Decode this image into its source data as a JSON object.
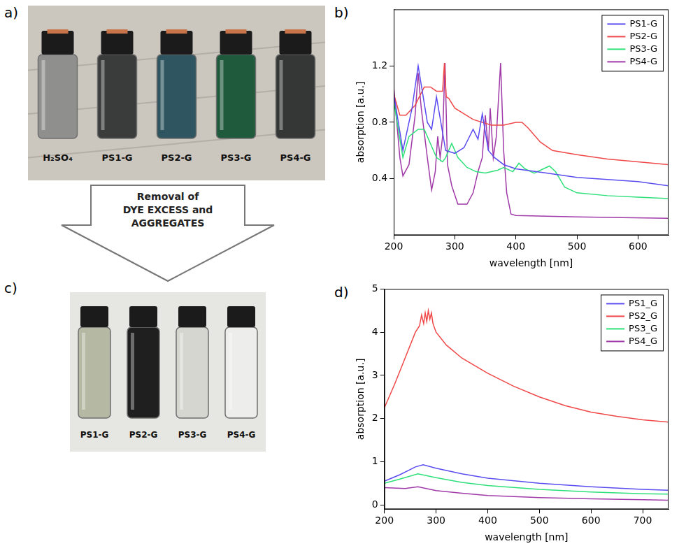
{
  "photos": [
    {
      "panel_label": "a)",
      "vials": [
        {
          "label": "H₂SO₄",
          "color": "#8f908e"
        },
        {
          "label": "PS1-G",
          "color": "#3a3c3b"
        },
        {
          "label": "PS2-G",
          "color": "#2f5560"
        },
        {
          "label": "PS3-G",
          "color": "#1f5a3c"
        },
        {
          "label": "PS4-G",
          "color": "#353737"
        }
      ]
    },
    {
      "panel_label": "c)",
      "vials": [
        {
          "label": "PS1-G",
          "color": "#b5b8a2"
        },
        {
          "label": "PS2-G",
          "color": "#1e1f1e"
        },
        {
          "label": "PS3-G",
          "color": "#d5d6cf"
        },
        {
          "label": "PS4-G",
          "color": "#ededeb"
        }
      ]
    }
  ],
  "arrow": {
    "text_lines": [
      "Removal of",
      "DYE EXCESS and",
      "AGGREGATES"
    ]
  },
  "chart_data": [
    {
      "type": "line",
      "panel_label": "b)",
      "x_label": "wavelength [nm]",
      "y_label": "absorption [a.u.]",
      "xlim": [
        200,
        650
      ],
      "ylim": [
        0,
        1.6
      ],
      "xticks": [
        200,
        300,
        400,
        500,
        600
      ],
      "yticks": [
        0.4,
        0.8,
        1.2
      ],
      "legend": "top-right",
      "series": [
        {
          "name": "PS1-G",
          "color": "#5a4cf0",
          "x": [
            200,
            215,
            230,
            240,
            255,
            262,
            270,
            285,
            300,
            315,
            330,
            338,
            345,
            355,
            365,
            380,
            400,
            450,
            500,
            600,
            650
          ],
          "values": [
            1.0,
            0.6,
            0.9,
            1.2,
            0.8,
            0.75,
            0.98,
            0.6,
            0.58,
            0.62,
            0.75,
            0.68,
            0.86,
            0.6,
            0.55,
            0.5,
            0.47,
            0.44,
            0.41,
            0.38,
            0.35
          ]
        },
        {
          "name": "PS2-G",
          "color": "#f04848",
          "x": [
            200,
            210,
            220,
            235,
            250,
            260,
            270,
            280,
            283,
            286,
            290,
            300,
            330,
            360,
            380,
            400,
            410,
            420,
            440,
            460,
            500,
            550,
            600,
            650
          ],
          "values": [
            1.0,
            0.85,
            0.85,
            0.92,
            1.05,
            1.05,
            1.02,
            1.02,
            1.22,
            0.98,
            0.97,
            0.9,
            0.82,
            0.78,
            0.78,
            0.8,
            0.8,
            0.76,
            0.66,
            0.6,
            0.57,
            0.54,
            0.52,
            0.5
          ]
        },
        {
          "name": "PS3-G",
          "color": "#2ee07a",
          "x": [
            200,
            215,
            225,
            240,
            250,
            260,
            270,
            280,
            285,
            295,
            305,
            320,
            335,
            350,
            370,
            380,
            395,
            405,
            415,
            430,
            445,
            455,
            465,
            480,
            500,
            550,
            600,
            650
          ],
          "values": [
            0.95,
            0.55,
            0.7,
            0.75,
            0.75,
            0.65,
            0.55,
            0.52,
            0.55,
            0.65,
            0.55,
            0.48,
            0.45,
            0.44,
            0.46,
            0.48,
            0.45,
            0.51,
            0.47,
            0.44,
            0.47,
            0.49,
            0.45,
            0.34,
            0.3,
            0.28,
            0.27,
            0.26
          ]
        },
        {
          "name": "PS4-G",
          "color": "#a03aa8",
          "x": [
            200,
            210,
            215,
            225,
            235,
            240,
            245,
            255,
            262,
            268,
            272,
            276,
            280,
            284,
            288,
            295,
            305,
            320,
            330,
            338,
            345,
            350,
            355,
            358,
            363,
            368,
            375,
            380,
            385,
            392,
            400,
            500,
            650
          ],
          "values": [
            1.05,
            0.55,
            0.42,
            0.5,
            0.85,
            1.15,
            0.9,
            0.55,
            0.32,
            0.45,
            0.7,
            0.55,
            0.7,
            1.22,
            0.5,
            0.35,
            0.22,
            0.22,
            0.3,
            0.45,
            0.55,
            0.85,
            0.6,
            0.9,
            0.55,
            0.7,
            1.22,
            0.6,
            0.3,
            0.15,
            0.14,
            0.13,
            0.12
          ]
        }
      ]
    },
    {
      "type": "line",
      "panel_label": "d)",
      "x_label": "wavelength [nm]",
      "y_label": "absorption [a.u.]",
      "xlim": [
        200,
        750
      ],
      "ylim": [
        -0.1,
        5
      ],
      "xticks": [
        200,
        300,
        400,
        500,
        600,
        700
      ],
      "yticks": [
        0,
        1,
        2,
        3,
        4,
        5
      ],
      "legend": "top-right",
      "series": [
        {
          "name": "PS1_G",
          "color": "#5a4cf0",
          "x": [
            200,
            230,
            260,
            275,
            300,
            350,
            400,
            500,
            600,
            700,
            750
          ],
          "values": [
            0.55,
            0.7,
            0.88,
            0.93,
            0.85,
            0.72,
            0.62,
            0.5,
            0.42,
            0.36,
            0.34
          ]
        },
        {
          "name": "PS2_G",
          "color": "#f04848",
          "x": [
            200,
            220,
            240,
            260,
            268,
            272,
            276,
            279,
            282,
            285,
            288,
            291,
            294,
            300,
            320,
            350,
            400,
            450,
            500,
            550,
            600,
            650,
            700,
            750
          ],
          "values": [
            2.25,
            2.8,
            3.4,
            4.0,
            4.15,
            4.4,
            4.2,
            4.45,
            4.25,
            4.5,
            4.3,
            4.45,
            4.2,
            4.0,
            3.7,
            3.4,
            3.05,
            2.75,
            2.5,
            2.3,
            2.15,
            2.05,
            1.97,
            1.92
          ]
        },
        {
          "name": "PS3_G",
          "color": "#2ee07a",
          "x": [
            200,
            230,
            265,
            300,
            350,
            400,
            500,
            600,
            700,
            750
          ],
          "values": [
            0.5,
            0.6,
            0.72,
            0.63,
            0.52,
            0.45,
            0.36,
            0.3,
            0.26,
            0.25
          ]
        },
        {
          "name": "PS4_G",
          "color": "#a03aa8",
          "x": [
            200,
            240,
            265,
            300,
            350,
            400,
            500,
            600,
            700,
            750
          ],
          "values": [
            0.4,
            0.38,
            0.42,
            0.33,
            0.27,
            0.22,
            0.17,
            0.14,
            0.12,
            0.11
          ]
        }
      ]
    }
  ]
}
